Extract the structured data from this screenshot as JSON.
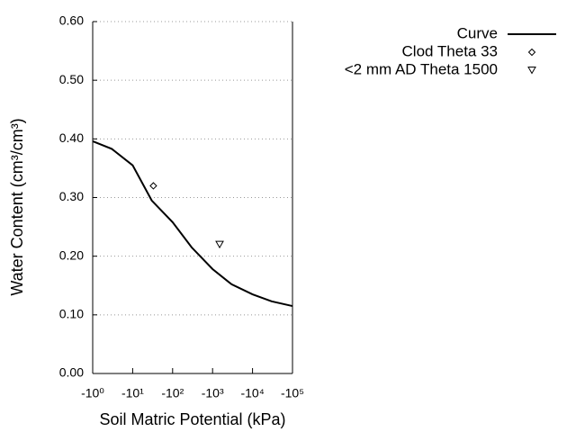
{
  "chart_data": {
    "type": "line",
    "xlabel": "Soil Matric Potential (kPa)",
    "ylabel": "Water Content (cm³/cm³)",
    "xscale": "log",
    "xlim": [
      -1,
      -100000
    ],
    "xticks": [
      {
        "value": -1,
        "label": "-10⁰"
      },
      {
        "value": -10,
        "label": "-10¹"
      },
      {
        "value": -100,
        "label": "-10²"
      },
      {
        "value": -1000,
        "label": "-10³"
      },
      {
        "value": -10000,
        "label": "-10⁴"
      },
      {
        "value": -100000,
        "label": "-10⁵"
      }
    ],
    "ylim": [
      0,
      0.6
    ],
    "yticks": [
      {
        "value": 0,
        "label": "0.00"
      },
      {
        "value": 0.1,
        "label": "0.10"
      },
      {
        "value": 0.2,
        "label": "0.20"
      },
      {
        "value": 0.3,
        "label": "0.30"
      },
      {
        "value": 0.4,
        "label": "0.40"
      },
      {
        "value": 0.5,
        "label": "0.50"
      },
      {
        "value": 0.6,
        "label": "0.60"
      }
    ],
    "grid": true,
    "legend": "top-right",
    "series": [
      {
        "name": "Curve",
        "color": "#000000",
        "mode": "line",
        "x": [
          -1,
          -3,
          -10,
          -30,
          -100,
          -300,
          -1000,
          -3000,
          -10000,
          -30000,
          -100000
        ],
        "values": [
          0.396,
          0.383,
          0.355,
          0.295,
          0.258,
          0.215,
          0.178,
          0.152,
          0.135,
          0.123,
          0.115
        ]
      },
      {
        "name": "Clod Theta 33",
        "color": "#000000",
        "mode": "marker",
        "marker": "diamond",
        "x": [
          -33
        ],
        "values": [
          0.32
        ]
      },
      {
        "name": "<2 mm AD Theta 1500",
        "color": "#000000",
        "mode": "marker",
        "marker": "triangle-down",
        "x": [
          -1500
        ],
        "values": [
          0.22
        ]
      }
    ]
  }
}
